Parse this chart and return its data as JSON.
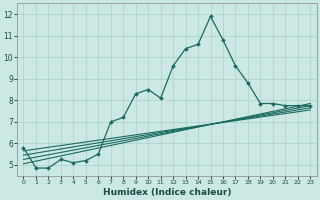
{
  "xlabel": "Humidex (Indice chaleur)",
  "xlim": [
    -0.5,
    23.5
  ],
  "ylim": [
    4.5,
    12.5
  ],
  "yticks": [
    5,
    6,
    7,
    8,
    9,
    10,
    11,
    12
  ],
  "xticks": [
    0,
    1,
    2,
    3,
    4,
    5,
    6,
    7,
    8,
    9,
    10,
    11,
    12,
    13,
    14,
    15,
    16,
    17,
    18,
    19,
    20,
    21,
    22,
    23
  ],
  "bg_color": "#cce8e4",
  "line_color": "#1a6b60",
  "grid_color": "#b0d4ce",
  "main_line": {
    "x": [
      0,
      1,
      2,
      3,
      4,
      5,
      6,
      7,
      8,
      9,
      10,
      11,
      12,
      13,
      14,
      15,
      16,
      17,
      18,
      19,
      20,
      21,
      22,
      23
    ],
    "y": [
      5.8,
      4.85,
      4.85,
      5.25,
      5.1,
      5.2,
      5.5,
      7.0,
      7.2,
      8.3,
      8.5,
      8.1,
      9.6,
      10.4,
      10.6,
      11.9,
      10.8,
      9.6,
      8.8,
      7.85,
      7.85,
      7.75,
      7.75,
      7.75
    ]
  },
  "trend_lines": [
    {
      "x": [
        0,
        23
      ],
      "y": [
        5.65,
        7.55
      ]
    },
    {
      "x": [
        0,
        23
      ],
      "y": [
        5.45,
        7.65
      ]
    },
    {
      "x": [
        0,
        23
      ],
      "y": [
        5.25,
        7.75
      ]
    },
    {
      "x": [
        0,
        23
      ],
      "y": [
        5.05,
        7.85
      ]
    }
  ]
}
